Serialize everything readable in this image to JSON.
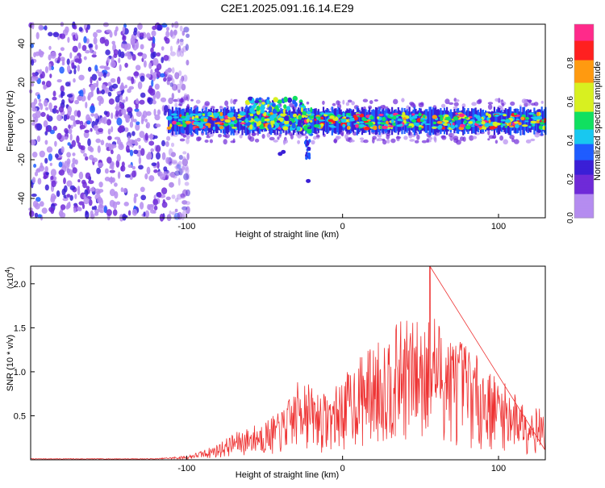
{
  "title": "C2E1.2025.091.16.14.E29",
  "colors": {
    "line": "#ee3333",
    "axis": "#000000",
    "background": "#ffffff"
  },
  "chart_data": [
    {
      "type": "heatmap",
      "title": "C2E1.2025.091.16.14.E29",
      "xlabel": "Height of straight line (km)",
      "ylabel": "Frequency (Hz)",
      "xlim": [
        -200,
        130
      ],
      "ylim": [
        -50,
        50
      ],
      "xticks": [
        -100,
        0,
        100
      ],
      "yticks": [
        -40,
        -20,
        0,
        20,
        40
      ],
      "colorbar": {
        "label": "Normalized spectral amplitude",
        "range": [
          0.0,
          1.0
        ],
        "ticks": [
          "0.0",
          "0.2",
          "0.4",
          "0.6",
          "0.8"
        ],
        "tick_values": [
          0.0,
          0.2,
          0.4,
          0.6,
          0.8
        ]
      },
      "features": {
        "noise_region_x": [
          -200,
          -105
        ],
        "band_start_x": -112,
        "band_center_freq_hz": 0,
        "band_halfwidth_hz": 6,
        "burst_x": [
          -40,
          -20
        ],
        "peak_amplitude": 1.0
      }
    },
    {
      "type": "line",
      "xlabel": "Height of straight line (km)",
      "ylabel": "SNR (10 * v/v)",
      "y_multiplier": "(x10",
      "y_multiplier_exp": "4",
      "y_multiplier_close": ")",
      "xlim": [
        -200,
        130
      ],
      "ylim": [
        0,
        2.2
      ],
      "xticks": [
        -100,
        0,
        100
      ],
      "yticks": [
        0.5,
        1.0,
        1.5,
        2.0
      ],
      "ytick_labels": [
        "0.5",
        "1.0",
        "1.5",
        "2.0"
      ],
      "series": [
        {
          "envelope": {
            "x": [
              -200,
              -120,
              -100,
              -90,
              -80,
              -70,
              -60,
              -50,
              -40,
              -30,
              -25,
              -20,
              -10,
              -5,
              0,
              10,
              20,
              30,
              40,
              50,
              55,
              60,
              70,
              80,
              90,
              100,
              110,
              120,
              130
            ],
            "y": [
              0.01,
              0.01,
              0.03,
              0.07,
              0.12,
              0.2,
              0.25,
              0.3,
              0.36,
              0.55,
              0.72,
              0.55,
              0.5,
              0.55,
              0.62,
              0.78,
              0.88,
              0.98,
              1.08,
              1.05,
              1.25,
              1.1,
              0.95,
              0.9,
              0.72,
              0.62,
              0.52,
              0.42,
              0.38
            ]
          },
          "peak": {
            "x": 56,
            "y": 2.2
          }
        }
      ]
    }
  ]
}
